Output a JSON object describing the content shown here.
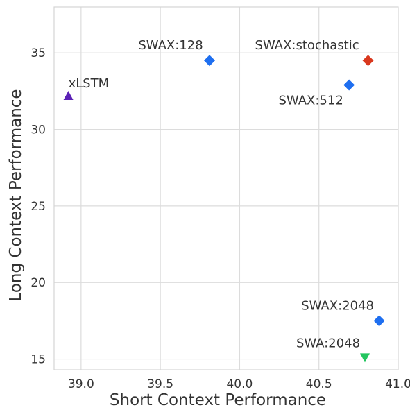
{
  "chart_data": {
    "type": "scatter",
    "title": "",
    "xlabel": "Short Context Performance",
    "ylabel": "Long Context Performance",
    "xlim": [
      38.83,
      41.0
    ],
    "ylim": [
      14.3,
      38.0
    ],
    "xticks": [
      "39.0",
      "39.5",
      "40.0",
      "40.5",
      "41.0"
    ],
    "yticks": [
      "15",
      "20",
      "25",
      "30",
      "35"
    ],
    "grid": true,
    "points": [
      {
        "label": "xLSTM",
        "x": 38.92,
        "y": 32.2,
        "marker": "triangle-up",
        "color": "#5b21b6"
      },
      {
        "label": "SWAX:128",
        "x": 39.81,
        "y": 34.5,
        "marker": "diamond",
        "color": "#1f6ff0"
      },
      {
        "label": "SWAX:stochastic",
        "x": 40.81,
        "y": 34.5,
        "marker": "diamond",
        "color": "#d9381e"
      },
      {
        "label": "SWAX:512",
        "x": 40.69,
        "y": 32.9,
        "marker": "diamond",
        "color": "#1f6ff0"
      },
      {
        "label": "SWAX:2048",
        "x": 40.88,
        "y": 17.5,
        "marker": "diamond",
        "color": "#1f6ff0"
      },
      {
        "label": "SWA:2048",
        "x": 40.79,
        "y": 15.1,
        "marker": "triangle-down",
        "color": "#22c55e"
      }
    ]
  }
}
